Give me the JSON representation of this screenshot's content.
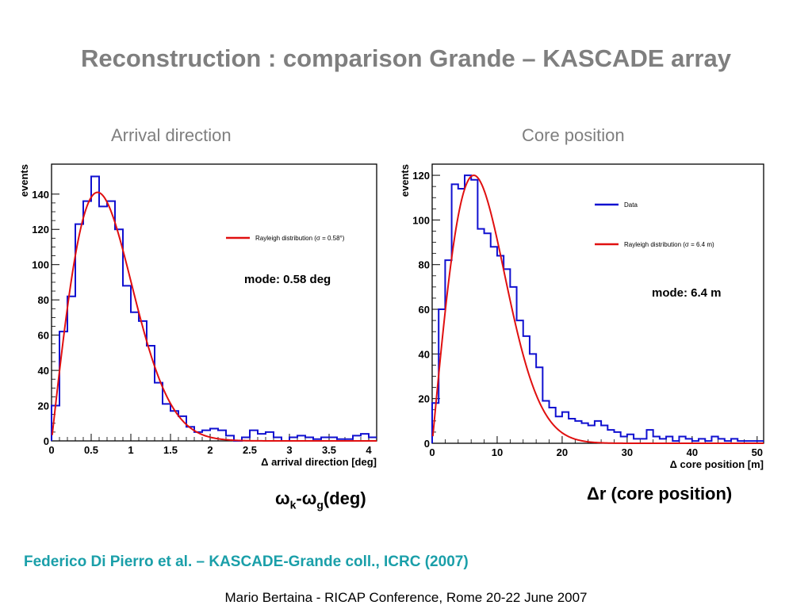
{
  "slide": {
    "title": "Reconstruction : comparison Grande – KASCADE array",
    "left_subtitle": "Arrival direction",
    "right_subtitle": "Core position",
    "left_caption": {
      "omega": "ω",
      "k": "k",
      "dash": "-",
      "g": "g",
      "unit": "(deg)"
    },
    "right_caption": {
      "delta": "Δ",
      "text": "r (core position)"
    },
    "citation": "Federico Di Pierro et al. – KASCADE-Grande coll., ICRC (2007)",
    "footer": "Mario Bertaina - RICAP Conference, Rome 20-22 June 2007"
  },
  "colors": {
    "data": "#1010d0",
    "fit": "#e01010",
    "title": "#7f7f7f",
    "citation": "#1a9fa9"
  },
  "chart_data": [
    {
      "type": "histogram",
      "name": "arrival-direction",
      "xlabel": "Δ arrival direction [deg]",
      "ylabel": "events",
      "xlim": [
        0,
        4.1
      ],
      "ylim": [
        0,
        157
      ],
      "xticks": [
        0,
        0.5,
        1,
        1.5,
        2,
        2.5,
        3,
        3.5,
        4
      ],
      "xtick_labels": [
        "0",
        "0.5",
        "1",
        "1.5",
        "2",
        "2.5",
        "3",
        "3.5",
        "4"
      ],
      "yticks": [
        0,
        20,
        40,
        60,
        80,
        100,
        120,
        140
      ],
      "ytick_labels": [
        "0",
        "20",
        "40",
        "60",
        "80",
        "100",
        "120",
        "140"
      ],
      "bin_width": 0.1,
      "bin_start": 0,
      "values": [
        20,
        62,
        82,
        123,
        136,
        150,
        133,
        136,
        120,
        88,
        73,
        68,
        54,
        33,
        21,
        17,
        14,
        8,
        5,
        6,
        7,
        6,
        3,
        0,
        2,
        6,
        4,
        5,
        2,
        0,
        2,
        3,
        2,
        1,
        2,
        2,
        1,
        1,
        3,
        4,
        2
      ],
      "fit": {
        "name": "Rayleigh distribution (σ = 0.58°)",
        "sigma_label": "σ = 0.58",
        "sigma": 0.58,
        "amplitude": 141
      },
      "legend_entries": [
        {
          "label": "Rayleigh distribution (σ = 0.58°)",
          "color": "#e01010"
        }
      ],
      "annotation": "mode: 0.58 deg"
    },
    {
      "type": "histogram",
      "name": "core-position",
      "xlabel": "Δ core position [m]",
      "ylabel": "events",
      "xlim": [
        0,
        51
      ],
      "ylim": [
        0,
        125
      ],
      "xticks": [
        0,
        10,
        20,
        30,
        40,
        50
      ],
      "xtick_labels": [
        "0",
        "10",
        "20",
        "30",
        "40",
        "50"
      ],
      "yticks": [
        0,
        20,
        40,
        60,
        80,
        100,
        120
      ],
      "ytick_labels": [
        "0",
        "20",
        "40",
        "60",
        "80",
        "100",
        "120"
      ],
      "bin_width": 1,
      "bin_start": 0,
      "values": [
        18,
        60,
        82,
        116,
        114,
        120,
        118,
        96,
        94,
        88,
        84,
        78,
        70,
        55,
        48,
        40,
        34,
        19,
        16,
        12,
        14,
        11,
        10,
        9,
        8,
        10,
        8,
        6,
        5,
        3,
        4,
        2,
        2,
        6,
        3,
        2,
        3,
        1,
        3,
        2,
        1,
        2,
        1,
        3,
        2,
        1,
        2,
        1,
        1,
        1,
        1
      ],
      "legend_entries": [
        {
          "label": "Data",
          "color": "#1010d0"
        },
        {
          "label": "Rayleigh distribution (σ = 6.4 m)",
          "color": "#e01010"
        }
      ],
      "fit": {
        "name": "Rayleigh distribution (σ = 6.4 m)",
        "sigma": 6.4,
        "amplitude": 120
      },
      "annotation": "mode: 6.4 m"
    }
  ]
}
